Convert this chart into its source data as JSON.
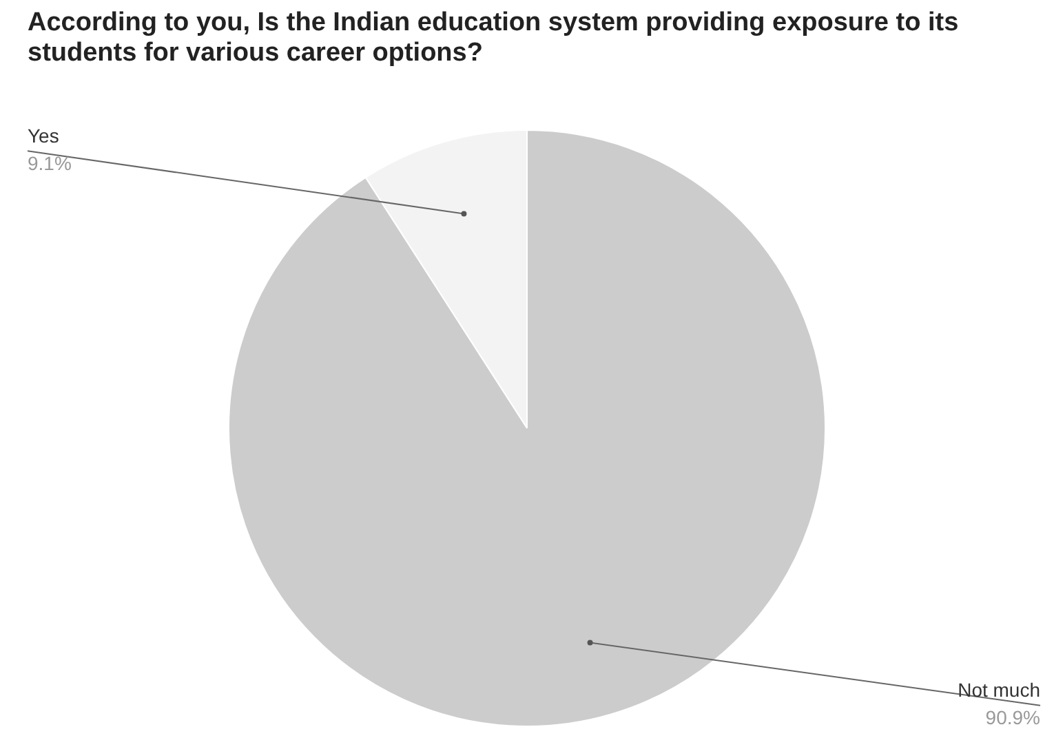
{
  "chart_data": {
    "type": "pie",
    "title": "According to you, Is the Indian education system providing exposure to its students for various career options?",
    "categories": [
      "Yes",
      "Not much"
    ],
    "values": [
      9.1,
      90.9
    ],
    "colors": [
      "#f3f3f3",
      "#cccccc"
    ],
    "value_labels": [
      "9.1%",
      "90.9%"
    ],
    "legend": false
  }
}
